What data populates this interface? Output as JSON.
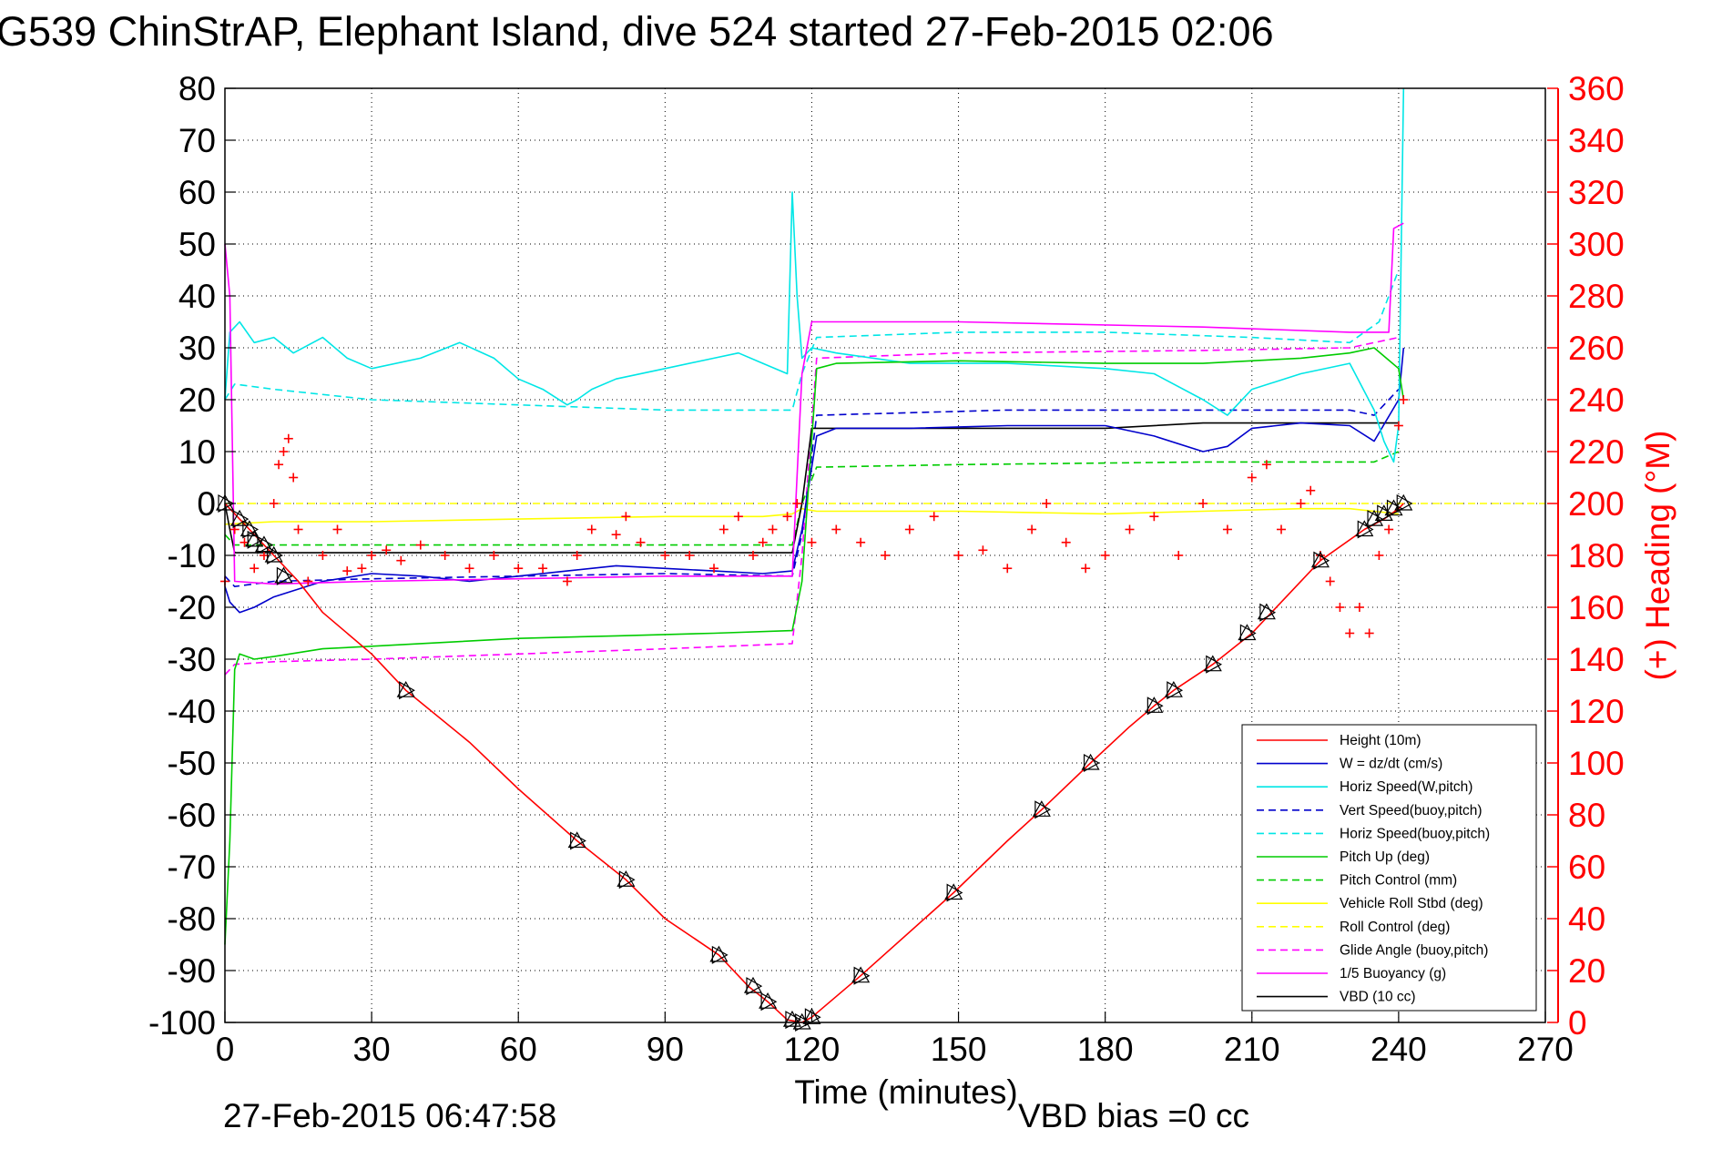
{
  "chart_data": {
    "type": "line",
    "title": "G539 ChinStrAP, Elephant Island, dive 524 started 27-Feb-2015 02:06",
    "xlabel": "Time (minutes)",
    "ylabel": "",
    "y2label": "(+) Heading (°M)",
    "xlim": [
      0,
      270
    ],
    "ylim": [
      -100,
      80
    ],
    "y2lim": [
      0,
      360
    ],
    "grid": true,
    "legend_position": "bottom-right",
    "x_ticks": [
      "0",
      "30",
      "60",
      "90",
      "120",
      "150",
      "180",
      "210",
      "240",
      "270"
    ],
    "y_ticks": [
      "80",
      "70",
      "60",
      "50",
      "40",
      "30",
      "20",
      "10",
      "0",
      "-10",
      "-20",
      "-30",
      "-40",
      "-50",
      "-60",
      "-70",
      "-80",
      "-90",
      "-100"
    ],
    "y2_ticks": [
      "360",
      "340",
      "320",
      "300",
      "280",
      "260",
      "240",
      "220",
      "200",
      "180",
      "160",
      "140",
      "120",
      "100",
      "80",
      "60",
      "40",
      "20",
      "0"
    ],
    "footer_left": "27-Feb-2015 06:47:58",
    "footer_right": "VBD bias =0 cc",
    "colors": {
      "red": "#ff0000",
      "blue": "#0000cc",
      "cyan": "#00e6e6",
      "green": "#00cc00",
      "yellow": "#ffff00",
      "magenta": "#ff00ff",
      "black": "#000000"
    },
    "series": [
      {
        "name": "Height (10m)",
        "color": "#ff0000",
        "dash": false,
        "axis": "left",
        "x": [
          0,
          5,
          10,
          15,
          20,
          30,
          37,
          50,
          60,
          72,
          82,
          90,
          101,
          107,
          111,
          115,
          118,
          120,
          130,
          149,
          160,
          167,
          177,
          185,
          190,
          194,
          202,
          210,
          214,
          224,
          233,
          237,
          240,
          241
        ],
        "y": [
          0,
          -5,
          -10,
          -15,
          -21,
          -29,
          -36,
          -46,
          -55,
          -65,
          -72.5,
          -80,
          -87,
          -93,
          -96,
          -99.5,
          -100,
          -99,
          -91,
          -75,
          -65,
          -59,
          -50,
          -43,
          -39,
          -36,
          -31,
          -25,
          -21,
          -11,
          -5,
          -3,
          -1,
          0
        ]
      },
      {
        "name": "W = dz/dt (cm/s)",
        "color": "#0000cc",
        "dash": false,
        "axis": "left",
        "x": [
          0,
          1,
          3,
          6,
          10,
          20,
          30,
          40,
          50,
          60,
          70,
          80,
          90,
          100,
          110,
          116,
          118,
          121,
          125,
          140,
          160,
          180,
          190,
          200,
          205,
          210,
          220,
          230,
          235,
          240,
          241
        ],
        "y": [
          -16,
          -19,
          -21,
          -20,
          -18,
          -15,
          -13.5,
          -14,
          -15,
          -14,
          -13,
          -12,
          -12.5,
          -13,
          -13.5,
          -13,
          -5,
          13,
          14.5,
          14.5,
          15,
          15,
          13,
          10,
          11,
          14.5,
          15.5,
          15,
          12,
          20,
          30
        ]
      },
      {
        "name": "Horiz Speed(W,pitch)",
        "color": "#00e6e6",
        "dash": false,
        "axis": "left",
        "x": [
          0,
          1,
          3,
          6,
          10,
          14,
          20,
          25,
          30,
          40,
          48,
          55,
          60,
          65,
          70,
          72,
          75,
          80,
          90,
          100,
          105,
          110,
          115,
          116,
          117,
          118,
          120,
          125,
          140,
          160,
          180,
          190,
          200,
          205,
          210,
          220,
          230,
          235,
          237,
          239,
          240,
          241
        ],
        "y": [
          20,
          33,
          35,
          31,
          32,
          29,
          32,
          28,
          26,
          28,
          31,
          28,
          24,
          22,
          19,
          20,
          22,
          24,
          26,
          28,
          29,
          27,
          25,
          60,
          40,
          28,
          30,
          29,
          27,
          27,
          26,
          25,
          20,
          17,
          22,
          25,
          27,
          18,
          12,
          8,
          15,
          80
        ]
      },
      {
        "name": "Vert Speed(buoy,pitch)",
        "color": "#0000cc",
        "dash": true,
        "axis": "left",
        "x": [
          0,
          2,
          10,
          30,
          60,
          90,
          116,
          118,
          121,
          160,
          200,
          230,
          235,
          240
        ],
        "y": [
          -14,
          -16,
          -15,
          -14.5,
          -14,
          -13.5,
          -14,
          -6,
          17,
          18,
          18,
          18,
          17,
          22
        ]
      },
      {
        "name": "Horiz Speed(buoy,pitch)",
        "color": "#00e6e6",
        "dash": true,
        "axis": "left",
        "x": [
          0,
          2,
          10,
          30,
          60,
          90,
          116,
          118,
          121,
          150,
          180,
          210,
          230,
          236,
          240
        ],
        "y": [
          20,
          23,
          22,
          20,
          19,
          18,
          18,
          25,
          32,
          33,
          33,
          32,
          31,
          35,
          45
        ]
      },
      {
        "name": "Pitch Up (deg)",
        "color": "#00cc00",
        "dash": false,
        "axis": "left",
        "x": [
          0,
          1,
          2,
          3,
          6,
          10,
          20,
          30,
          40,
          60,
          80,
          100,
          116,
          118,
          121,
          125,
          150,
          180,
          200,
          220,
          230,
          235,
          240,
          241
        ],
        "y": [
          -85,
          -65,
          -32,
          -29,
          -30,
          -29.5,
          -28,
          -27.5,
          -27,
          -26,
          -25.5,
          -25,
          -24.5,
          -15,
          26,
          27,
          27.5,
          27,
          27,
          28,
          29,
          30,
          26,
          20
        ]
      },
      {
        "name": "Pitch Control (mm)",
        "color": "#00cc00",
        "dash": true,
        "axis": "left",
        "x": [
          0,
          2,
          10,
          60,
          116,
          118,
          121,
          150,
          200,
          235,
          240
        ],
        "y": [
          -6,
          -8,
          -8,
          -8,
          -8,
          0,
          7,
          7.5,
          8,
          8,
          10
        ]
      },
      {
        "name": "Vehicle Roll Stbd (deg)",
        "color": "#ffff00",
        "dash": false,
        "axis": "left",
        "x": [
          0,
          10,
          30,
          60,
          90,
          110,
          116,
          118,
          121,
          150,
          180,
          200,
          220,
          230,
          240
        ],
        "y": [
          -4,
          -3.5,
          -3.5,
          -3,
          -2.5,
          -2.5,
          -2,
          -1,
          -1.5,
          -1.5,
          -2,
          -1.5,
          -1,
          -1,
          -2
        ]
      },
      {
        "name": "Roll Control (deg)",
        "color": "#ffff00",
        "dash": true,
        "axis": "left",
        "x": [
          0,
          270
        ],
        "y": [
          0,
          0
        ]
      },
      {
        "name": "Glide Angle (buoy,pitch)",
        "color": "#ff00ff",
        "dash": true,
        "axis": "left",
        "x": [
          0,
          2,
          10,
          30,
          60,
          90,
          116,
          118,
          121,
          150,
          200,
          230,
          240
        ],
        "y": [
          -33,
          -31,
          -30.5,
          -30,
          -29,
          -28,
          -27,
          -10,
          28,
          29,
          29.5,
          30,
          32
        ]
      },
      {
        "name": "1/5 Buoyancy (g)",
        "color": "#ff00ff",
        "dash": false,
        "axis": "left",
        "x": [
          0,
          1,
          2,
          10,
          30,
          60,
          90,
          116,
          118,
          120,
          150,
          200,
          230,
          238,
          239,
          241
        ],
        "y": [
          50,
          40,
          -15,
          -15.5,
          -15,
          -14.5,
          -14,
          -14,
          25,
          35,
          35,
          34,
          33,
          33,
          53,
          54
        ]
      },
      {
        "name": "VBD (10 cc)",
        "color": "#000000",
        "dash": false,
        "axis": "left",
        "x": [
          0,
          1,
          2,
          116,
          118,
          120,
          180,
          200,
          240
        ],
        "y": [
          0,
          -5,
          -9.5,
          -9.5,
          0,
          14.5,
          14.5,
          15.5,
          15.5
        ]
      }
    ],
    "heading_series": {
      "name": "(+) Heading",
      "color": "#ff0000",
      "marker": "+",
      "axis": "right",
      "x": [
        0,
        2,
        4,
        6,
        8,
        10,
        11,
        12,
        13,
        14,
        15,
        17,
        20,
        23,
        25,
        28,
        30,
        33,
        36,
        40,
        45,
        50,
        55,
        60,
        65,
        70,
        72,
        75,
        80,
        82,
        85,
        90,
        95,
        100,
        102,
        105,
        108,
        110,
        112,
        115,
        117,
        120,
        125,
        130,
        135,
        140,
        145,
        150,
        155,
        160,
        165,
        168,
        172,
        176,
        180,
        185,
        190,
        195,
        200,
        205,
        210,
        213,
        216,
        220,
        222,
        224,
        226,
        228,
        230,
        232,
        234,
        236,
        238,
        240,
        241
      ],
      "y": [
        170,
        190,
        185,
        175,
        180,
        200,
        215,
        220,
        225,
        210,
        190,
        170,
        180,
        190,
        174,
        175,
        180,
        182,
        178,
        184,
        180,
        175,
        180,
        175,
        175,
        170,
        180,
        190,
        188,
        195,
        185,
        180,
        180,
        175,
        190,
        195,
        180,
        185,
        190,
        195,
        200,
        185,
        190,
        185,
        180,
        190,
        195,
        180,
        182,
        175,
        190,
        200,
        185,
        175,
        180,
        190,
        195,
        180,
        200,
        190,
        210,
        215,
        190,
        200,
        205,
        180,
        170,
        160,
        150,
        160,
        150,
        180,
        190,
        230,
        240
      ]
    },
    "depth_markers": {
      "up_marker": "△",
      "down_marker": "▷",
      "x": [
        0,
        3,
        5,
        6,
        8,
        10,
        12,
        37,
        72,
        82,
        101,
        108,
        111,
        116,
        118,
        120,
        130,
        149,
        167,
        177,
        190,
        194,
        202,
        209,
        213,
        224,
        233,
        235,
        237,
        239,
        241
      ],
      "y": [
        0,
        -3,
        -5,
        -7,
        -8,
        -10,
        -14,
        -36,
        -65,
        -72.5,
        -87,
        -93,
        -96,
        -99.5,
        -100,
        -99,
        -91,
        -75,
        -59,
        -50,
        -39,
        -36,
        -31,
        -25,
        -21,
        -11,
        -5,
        -3,
        -2,
        -1,
        0
      ]
    }
  }
}
